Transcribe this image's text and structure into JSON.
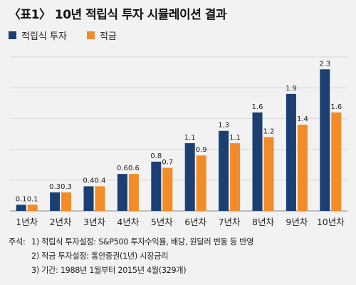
{
  "title": "〈표1〉 10년 적립식 투자 시뮬레이션 결과",
  "chart_data": {
    "type": "bar",
    "title": "〈표1〉 10년 적립식 투자 시뮬레이션 결과",
    "categories": [
      "1년차",
      "2년차",
      "3년차",
      "4년차",
      "5년차",
      "6년차",
      "7년차",
      "8년차",
      "9년차",
      "10년차"
    ],
    "series": [
      {
        "name": "적립식 투자",
        "color": "#1b3f73",
        "values": [
          0.1,
          0.3,
          0.4,
          0.6,
          0.8,
          1.1,
          1.3,
          1.6,
          1.9,
          2.3
        ]
      },
      {
        "name": "적금",
        "color": "#f28c28",
        "values": [
          0.1,
          0.3,
          0.4,
          0.6,
          0.7,
          0.9,
          1.1,
          1.2,
          1.4,
          1.6
        ]
      }
    ],
    "ylim": [
      0,
      2.5
    ],
    "grid": true,
    "legend_position": "top-left",
    "xlabel": "",
    "ylabel": ""
  },
  "notes": {
    "prefix": "주석:",
    "lines": [
      "1) 적립식 투자설정: S&P500 투자수익률, 배당, 원달러 변동 등 반영",
      "2) 적금 투자설정: 통안증권(1년) 시장금리",
      "3) 기간: 1988년 1월부터 2015년 4월(329개)"
    ]
  }
}
